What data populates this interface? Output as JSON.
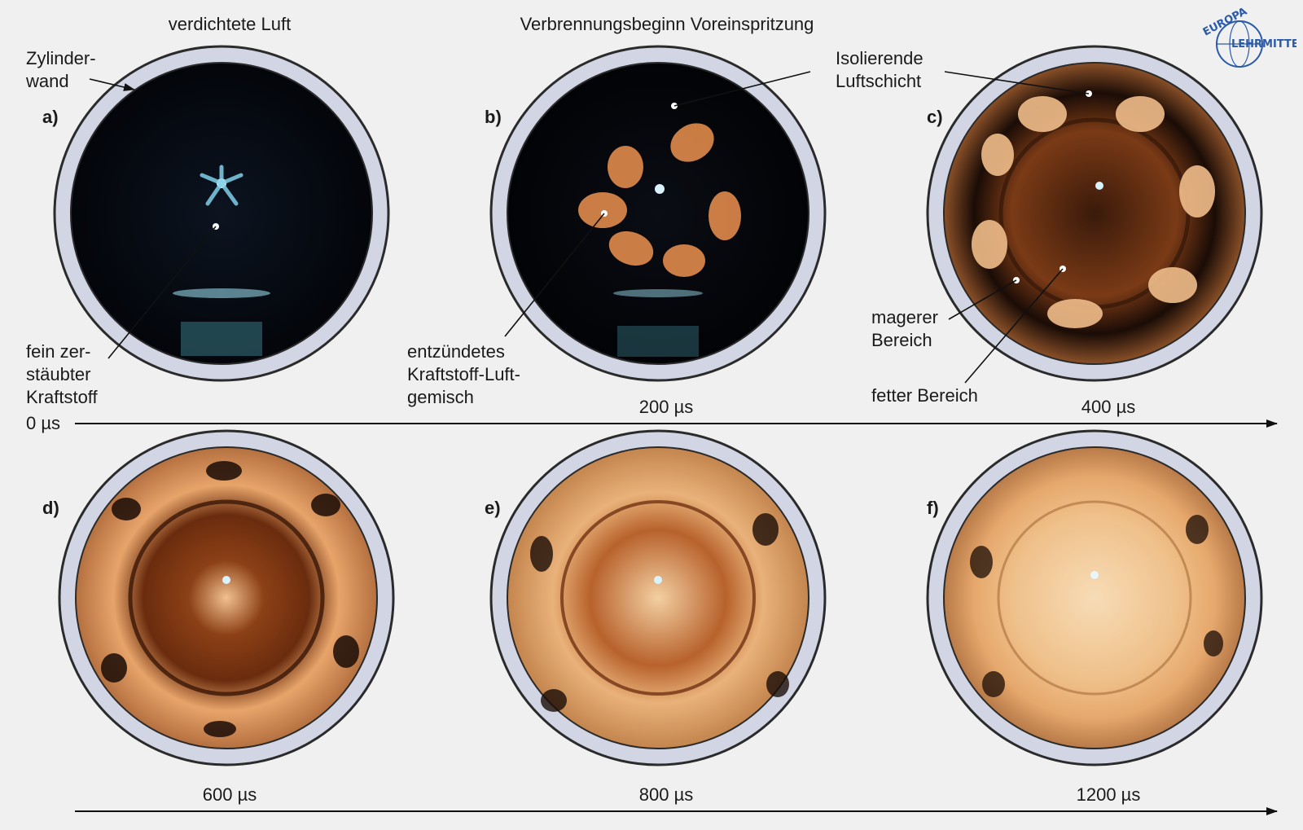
{
  "header": {
    "left": "verdichtete Luft",
    "center": "Verbrennungsbeginn Voreinspritzung"
  },
  "logo": {
    "top": "EUROPA",
    "bottom": "LEHRMITTEL",
    "color": "#2a5aa8"
  },
  "labels": {
    "wall_line1": "Zylinder-",
    "wall_line2": "wand",
    "fuel_line1": "fein zer-",
    "fuel_line2": "stäubter",
    "fuel_line3": "Kraftstoff",
    "ignited_line1": "entzündetes",
    "ignited_line2": "Kraftstoff-Luft-",
    "ignited_line3": "gemisch",
    "insulating_line1": "Isolierende",
    "insulating_line2": "Luftschicht",
    "lean_line1": "magerer",
    "lean_line2": "Bereich",
    "rich": "fetter Bereich"
  },
  "panels": [
    {
      "id": "a",
      "label": "a)",
      "time": "0 µs",
      "stage": "dark"
    },
    {
      "id": "b",
      "label": "b)",
      "time": "200 µs",
      "stage": "ignition"
    },
    {
      "id": "c",
      "label": "c)",
      "time": "400 µs",
      "stage": "spread"
    },
    {
      "id": "d",
      "label": "d)",
      "time": "600 µs",
      "stage": "developing"
    },
    {
      "id": "e",
      "label": "e)",
      "time": "800 µs",
      "stage": "advanced"
    },
    {
      "id": "f",
      "label": "f)",
      "time": "1200 µs",
      "stage": "full"
    }
  ],
  "colors": {
    "background": "#f0f0f0",
    "ring": "#d2d5e3",
    "ring_stroke": "#2b2b2b",
    "chamber_dark": "#05070c",
    "flame_orange": "#e08a4a",
    "flame_light": "#f3c79a"
  }
}
